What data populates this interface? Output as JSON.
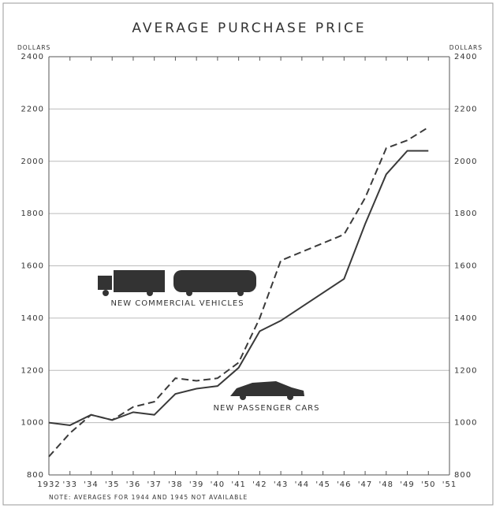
{
  "chart_data": {
    "type": "line",
    "title": "AVERAGE PURCHASE PRICE",
    "ylabel": "DOLLARS",
    "y2label": "DOLLARS",
    "note": "NOTE: AVERAGES FOR 1944 AND 1945 NOT AVAILABLE",
    "x": [
      1932,
      1933,
      1934,
      1935,
      1936,
      1937,
      1938,
      1939,
      1940,
      1941,
      1942,
      1943,
      1946,
      1947,
      1948,
      1949,
      1950
    ],
    "xlim": [
      1932,
      1951
    ],
    "xticks": [
      1932,
      {
        "value": 1933,
        "label": "'33"
      },
      {
        "value": 1934,
        "label": "'34"
      },
      {
        "value": 1935,
        "label": "'35"
      },
      {
        "value": 1936,
        "label": "'36"
      },
      {
        "value": 1937,
        "label": "'37"
      },
      {
        "value": 1938,
        "label": "'38"
      },
      {
        "value": 1939,
        "label": "'39"
      },
      {
        "value": 1940,
        "label": "'40"
      },
      {
        "value": 1941,
        "label": "'41"
      },
      {
        "value": 1942,
        "label": "'42"
      },
      {
        "value": 1943,
        "label": "'43"
      },
      {
        "value": 1944,
        "label": "'44"
      },
      {
        "value": 1945,
        "label": "'45"
      },
      {
        "value": 1946,
        "label": "'46"
      },
      {
        "value": 1947,
        "label": "'47"
      },
      {
        "value": 1948,
        "label": "'48"
      },
      {
        "value": 1949,
        "label": "'49"
      },
      {
        "value": 1950,
        "label": "'50"
      },
      {
        "value": 1951,
        "label": "'51"
      }
    ],
    "ylim": [
      800,
      2400
    ],
    "yticks": [
      800,
      1000,
      1200,
      1400,
      1600,
      1800,
      2000,
      2200,
      2400
    ],
    "grid": true,
    "series": [
      {
        "name": "NEW PASSENGER CARS",
        "color": "#3a3a3a",
        "line_style": "solid",
        "values": [
          1000,
          990,
          1030,
          1010,
          1040,
          1030,
          1110,
          1130,
          1140,
          1210,
          1350,
          1390,
          1550,
          1760,
          1950,
          2040,
          2040
        ]
      },
      {
        "name": "NEW COMMERCIAL VEHICLES",
        "color": "#3a3a3a",
        "line_style": "dashed",
        "values": [
          870,
          960,
          1030,
          1010,
          1060,
          1080,
          1170,
          1160,
          1170,
          1230,
          1400,
          1620,
          1720,
          1860,
          2050,
          2080,
          2130
        ]
      }
    ]
  }
}
